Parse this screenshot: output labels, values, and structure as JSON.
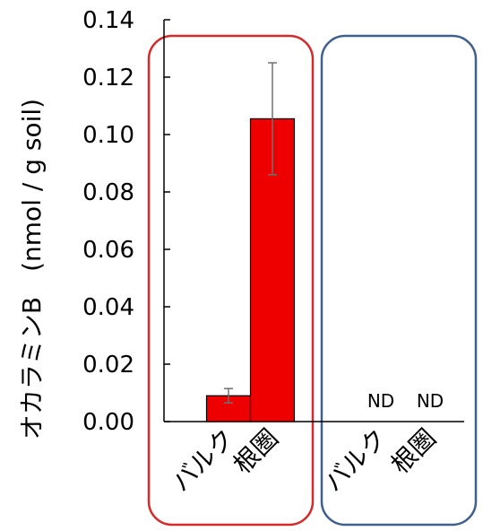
{
  "chart_data": {
    "type": "bar",
    "ylabel": "オカラミンB　(nmol / g soil)",
    "ylim": [
      0,
      0.14
    ],
    "yticks": [
      "0.00",
      "0.02",
      "0.04",
      "0.06",
      "0.08",
      "0.10",
      "0.12",
      "0.14"
    ],
    "grid": false,
    "legend": "none",
    "bar_color": "#ee0000",
    "groups": [
      {
        "frame_color": "#d42a2a",
        "bars": [
          {
            "label": "バルク",
            "value": 0.009,
            "error": 0.0025,
            "annotation": ""
          },
          {
            "label": "根圏",
            "value": 0.1055,
            "error": 0.0195,
            "annotation": ""
          }
        ]
      },
      {
        "frame_color": "#3f5f8c",
        "bars": [
          {
            "label": "バルク",
            "value": null,
            "error": null,
            "annotation": "ND"
          },
          {
            "label": "根圏",
            "value": null,
            "error": null,
            "annotation": "ND"
          }
        ]
      }
    ]
  }
}
